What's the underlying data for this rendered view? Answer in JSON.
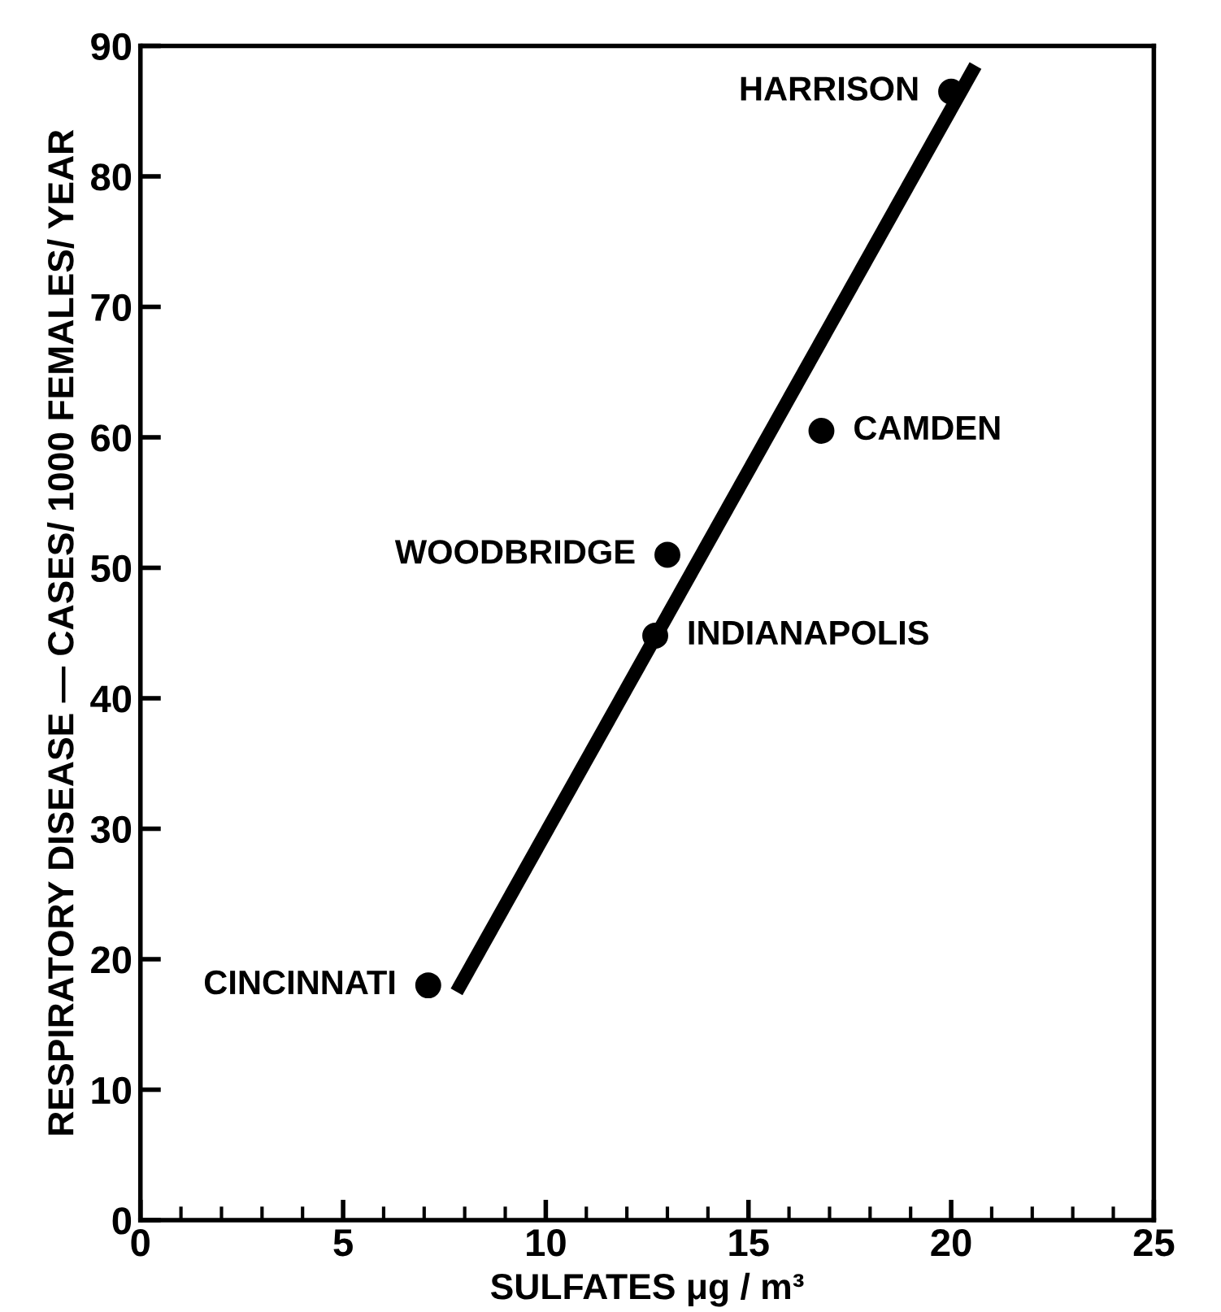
{
  "chart_data": {
    "type": "scatter",
    "xlabel": "SULFATES μg / m³",
    "ylabel": "RESPIRATORY DISEASE — CASES/ 1000 FEMALES/ YEAR",
    "xlim": [
      0,
      25
    ],
    "ylim": [
      0,
      90
    ],
    "xticks": [
      0,
      5,
      10,
      15,
      20,
      25
    ],
    "yticks": [
      0,
      10,
      20,
      30,
      40,
      50,
      60,
      70,
      80,
      90
    ],
    "grid": false,
    "series": [
      {
        "marker": "circle",
        "color": "#000000",
        "x": [
          7.1,
          12.7,
          13.0,
          16.8,
          20.0
        ],
        "values": [
          18,
          44.8,
          51,
          60.5,
          86.5
        ]
      },
      {
        "type": "line",
        "color": "#000000",
        "x": [
          7.8,
          20.6
        ],
        "values": [
          17.5,
          88.5
        ]
      }
    ],
    "annotations": [
      {
        "text": "CINCINNATI",
        "x": 7.1,
        "y": 18
      },
      {
        "text": "INDIANAPOLIS",
        "x": 12.7,
        "y": 44.8
      },
      {
        "text": "WOODBRIDGE",
        "x": 13.0,
        "y": 51
      },
      {
        "text": "CAMDEN",
        "x": 16.8,
        "y": 60.5
      },
      {
        "text": "HARRISON",
        "x": 20.0,
        "y": 86.5
      }
    ]
  }
}
